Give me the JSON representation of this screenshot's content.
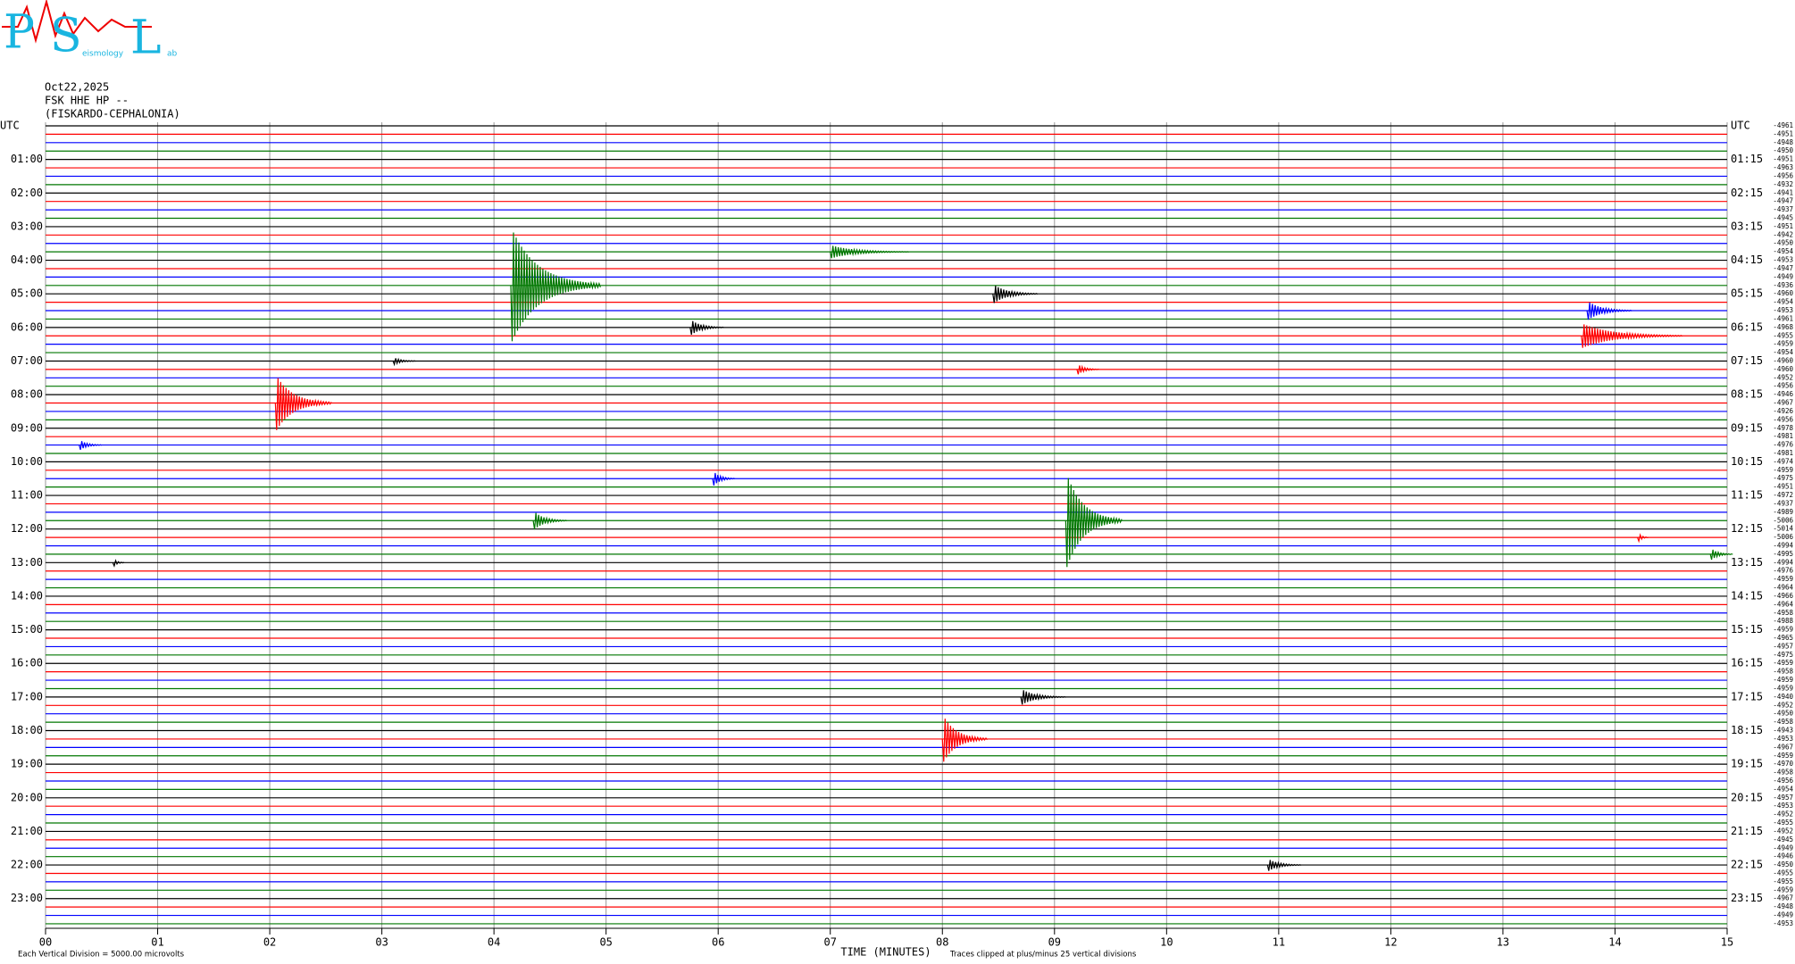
{
  "logo": {
    "letters": [
      "P",
      "S",
      "L"
    ],
    "words": [
      "eismology",
      "ab"
    ]
  },
  "chart_data": {
    "type": "helicorder",
    "date": "Oct22,2025",
    "channel": "FSK HHE HP --",
    "station": "(FISKARDO-CEPHALONIA)",
    "xlabel": "TIME (MINUTES)",
    "scale_note": "Each Vertical Division = 5000.00 microvolts",
    "clip_note": "Traces clipped at plus/minus 25 vertical divisions",
    "xlim": [
      0,
      15
    ],
    "xticks": [
      {
        "value": 0,
        "label": "00"
      },
      {
        "value": 1,
        "label": "01"
      },
      {
        "value": 2,
        "label": "02"
      },
      {
        "value": 3,
        "label": "03"
      },
      {
        "value": 4,
        "label": "04"
      },
      {
        "value": 5,
        "label": "05"
      },
      {
        "value": 6,
        "label": "06"
      },
      {
        "value": 7,
        "label": "07"
      },
      {
        "value": 8,
        "label": "08"
      },
      {
        "value": 9,
        "label": "09"
      },
      {
        "value": 10,
        "label": "10"
      },
      {
        "value": 11,
        "label": "11"
      },
      {
        "value": 12,
        "label": "12"
      },
      {
        "value": 13,
        "label": "13"
      },
      {
        "value": 14,
        "label": "14"
      },
      {
        "value": 15,
        "label": "15"
      }
    ],
    "left_labels": [
      "UTC",
      "01:00",
      "02:00",
      "03:00",
      "04:00",
      "05:00",
      "06:00",
      "07:00",
      "08:00",
      "09:00",
      "10:00",
      "11:00",
      "12:00",
      "13:00",
      "14:00",
      "15:00",
      "16:00",
      "17:00",
      "18:00",
      "19:00",
      "20:00",
      "21:00",
      "22:00",
      "23:00"
    ],
    "right_labels": [
      "UTC",
      "01:15",
      "02:15",
      "03:15",
      "04:15",
      "05:15",
      "06:15",
      "07:15",
      "08:15",
      "09:15",
      "10:15",
      "11:15",
      "12:15",
      "13:15",
      "14:15",
      "15:15",
      "16:15",
      "17:15",
      "18:15",
      "19:15",
      "20:15",
      "21:15",
      "22:15",
      "23:15"
    ],
    "colors": [
      "#000000",
      "#ff0000",
      "#0000ff",
      "#007700"
    ],
    "offsets": [
      -4961,
      -4951,
      -4948,
      -4950,
      -4951,
      -4963,
      -4956,
      -4932,
      -4941,
      -4947,
      -4937,
      -4945,
      -4951,
      -4942,
      -4950,
      -4954,
      -4953,
      -4947,
      -4949,
      -4936,
      -4960,
      -4954,
      -4953,
      -4961,
      -4968,
      -4955,
      -4959,
      -4954,
      -4960,
      -4960,
      -4952,
      -4956,
      -4946,
      -4967,
      -4926,
      -4956,
      -4978,
      -4981,
      -4976,
      -4981,
      -4974,
      -4959,
      -4975,
      -4951,
      -4972,
      -4937,
      -4989,
      -5006,
      -5014,
      -5006,
      -4994,
      -4995,
      -4994,
      -4976,
      -4959,
      -4964,
      -4966,
      -4964,
      -4958,
      -4988,
      -4959,
      -4965,
      -4957,
      -4975,
      -4959,
      -4958,
      -4959,
      -4959,
      -4940,
      -4952,
      -4950,
      -4958,
      -4943,
      -4953,
      -4967,
      -4959,
      -4970,
      -4958,
      -4956,
      -4954,
      -4957,
      -4953,
      -4952,
      -4955,
      -4952,
      -4945,
      -4949,
      -4946,
      -4950,
      -4955,
      -4955,
      -4959,
      -4967,
      -4948,
      -4949,
      -4953
    ],
    "events": [
      {
        "trace": 19,
        "minute": 4.15,
        "duration": 0.8,
        "amplitude": 7
      },
      {
        "trace": 15,
        "minute": 7.0,
        "duration": 0.7,
        "amplitude": 0.8
      },
      {
        "trace": 33,
        "minute": 2.05,
        "duration": 0.5,
        "amplitude": 3.5
      },
      {
        "trace": 25,
        "minute": 13.7,
        "duration": 0.9,
        "amplitude": 1.5
      },
      {
        "trace": 22,
        "minute": 13.75,
        "duration": 0.4,
        "amplitude": 1.2
      },
      {
        "trace": 47,
        "minute": 9.1,
        "duration": 0.5,
        "amplitude": 6
      },
      {
        "trace": 47,
        "minute": 4.35,
        "duration": 0.3,
        "amplitude": 1.2
      },
      {
        "trace": 20,
        "minute": 8.45,
        "duration": 0.4,
        "amplitude": 1.2
      },
      {
        "trace": 24,
        "minute": 5.75,
        "duration": 0.3,
        "amplitude": 1
      },
      {
        "trace": 68,
        "minute": 8.7,
        "duration": 0.4,
        "amplitude": 1
      },
      {
        "trace": 73,
        "minute": 8.0,
        "duration": 0.4,
        "amplitude": 3
      },
      {
        "trace": 42,
        "minute": 5.95,
        "duration": 0.2,
        "amplitude": 1
      },
      {
        "trace": 38,
        "minute": 0.3,
        "duration": 0.2,
        "amplitude": 0.7
      },
      {
        "trace": 88,
        "minute": 10.9,
        "duration": 0.3,
        "amplitude": 0.8
      },
      {
        "trace": 51,
        "minute": 14.85,
        "duration": 0.2,
        "amplitude": 0.8
      },
      {
        "trace": 49,
        "minute": 14.2,
        "duration": 0.1,
        "amplitude": 0.7
      },
      {
        "trace": 52,
        "minute": 0.6,
        "duration": 0.1,
        "amplitude": 0.6
      },
      {
        "trace": 28,
        "minute": 3.1,
        "duration": 0.2,
        "amplitude": 0.5
      },
      {
        "trace": 29,
        "minute": 9.2,
        "duration": 0.2,
        "amplitude": 0.7
      }
    ]
  }
}
